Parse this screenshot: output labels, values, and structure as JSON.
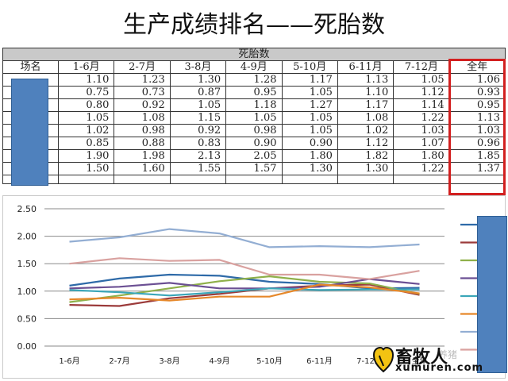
{
  "page_title": "生产成绩排名——死胎数",
  "table": {
    "group_header": "死胎数",
    "farm_header": "场名",
    "columns": [
      "1-6月",
      "2-7月",
      "3-8月",
      "4-9月",
      "5-10月",
      "6-11月",
      "7-12月",
      "全年"
    ],
    "rows": [
      [
        "1.10",
        "1.23",
        "1.30",
        "1.28",
        "1.17",
        "1.13",
        "1.05",
        "1.06"
      ],
      [
        "0.75",
        "0.73",
        "0.87",
        "0.95",
        "1.05",
        "1.10",
        "1.12",
        "0.93"
      ],
      [
        "0.80",
        "0.92",
        "1.05",
        "1.18",
        "1.27",
        "1.17",
        "1.14",
        "0.95"
      ],
      [
        "1.05",
        "1.08",
        "1.15",
        "1.05",
        "1.05",
        "1.08",
        "1.22",
        "1.13"
      ],
      [
        "1.02",
        "0.98",
        "0.92",
        "0.98",
        "1.05",
        "1.02",
        "1.03",
        "1.03"
      ],
      [
        "0.85",
        "0.88",
        "0.83",
        "0.90",
        "0.90",
        "1.12",
        "1.07",
        "0.96"
      ],
      [
        "1.90",
        "1.98",
        "2.13",
        "2.05",
        "1.80",
        "1.82",
        "1.80",
        "1.85"
      ],
      [
        "1.50",
        "1.60",
        "1.55",
        "1.57",
        "1.30",
        "1.30",
        "1.22",
        "1.37"
      ]
    ]
  },
  "chart_data": {
    "type": "line",
    "title": "",
    "xlabel": "",
    "ylabel": "",
    "categories": [
      "1-6月",
      "2-7月",
      "3-8月",
      "4-9月",
      "5-10月",
      "6-11月",
      "7-12月",
      "全年"
    ],
    "ylim": [
      0,
      2.5
    ],
    "yticks": [
      "0.00",
      "0.50",
      "1.00",
      "1.50",
      "2.00",
      "2.50"
    ],
    "grid": true,
    "legend": "right",
    "series": [
      {
        "color": "#2e6aa8",
        "values": [
          1.1,
          1.23,
          1.3,
          1.28,
          1.17,
          1.13,
          1.05,
          1.06
        ]
      },
      {
        "color": "#9b3a3a",
        "values": [
          0.75,
          0.73,
          0.87,
          0.95,
          1.05,
          1.1,
          1.12,
          0.93
        ]
      },
      {
        "color": "#8fb04a",
        "values": [
          0.8,
          0.92,
          1.05,
          1.18,
          1.27,
          1.17,
          1.14,
          0.95
        ]
      },
      {
        "color": "#6b4f93",
        "values": [
          1.05,
          1.08,
          1.15,
          1.05,
          1.05,
          1.08,
          1.22,
          1.13
        ]
      },
      {
        "color": "#3aa6b8",
        "values": [
          1.02,
          0.98,
          0.92,
          0.98,
          1.05,
          1.02,
          1.03,
          1.03
        ]
      },
      {
        "color": "#e6882a",
        "values": [
          0.85,
          0.88,
          0.83,
          0.9,
          0.9,
          1.12,
          1.07,
          0.96
        ]
      },
      {
        "color": "#93aed3",
        "values": [
          1.9,
          1.98,
          2.13,
          2.05,
          1.8,
          1.82,
          1.8,
          1.85
        ]
      },
      {
        "color": "#d9a19f",
        "values": [
          1.5,
          1.6,
          1.55,
          1.57,
          1.3,
          1.3,
          1.22,
          1.37
        ]
      }
    ]
  },
  "watermark": {
    "cn": "畜牧人",
    "en": "xumuren.com",
    "faint": "养猪"
  }
}
